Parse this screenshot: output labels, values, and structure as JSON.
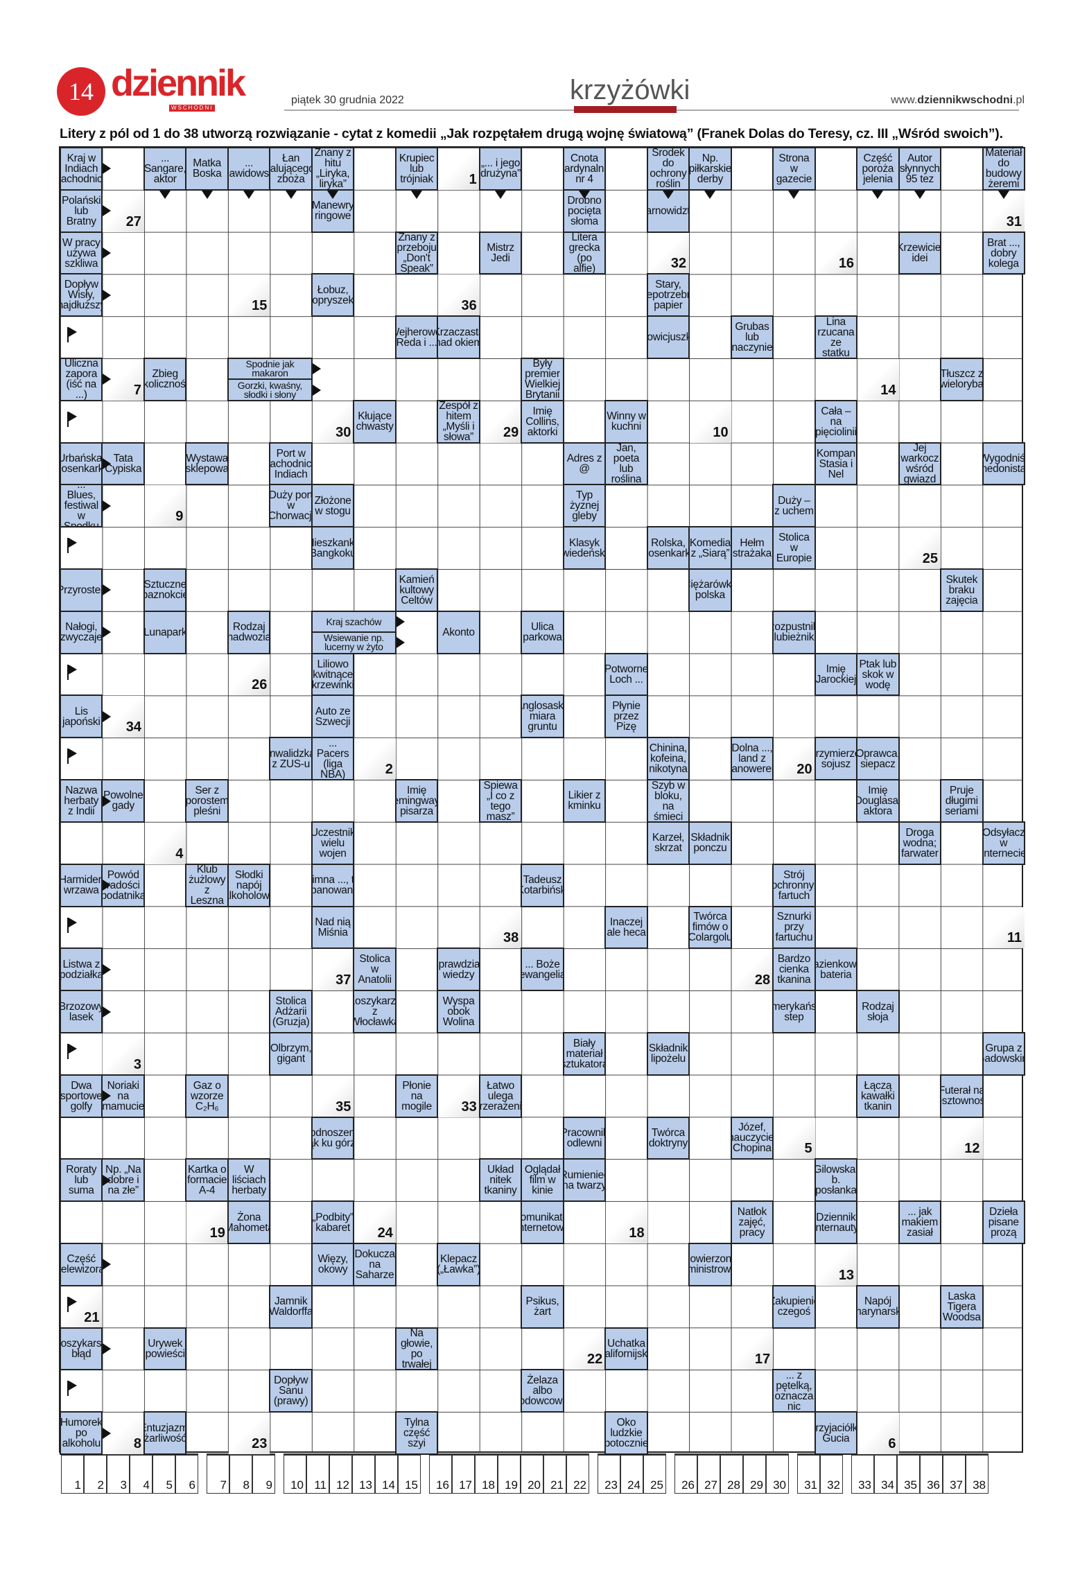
{
  "header": {
    "page_number": "14",
    "logo": "dziennik",
    "logo_sub": "WSCHODNI",
    "date": "piątek 30 grudnia 2022",
    "section": "krzyżówki",
    "site_prefix": "www.",
    "site_bold": "dziennikwschodni",
    "site_suffix": ".pl"
  },
  "colors": {
    "brand_red": "#d9252a",
    "clue_bg": "#b9cdea",
    "section_bar": "#a21d22"
  },
  "intro": "Litery z pól od 1 do 38 utworzą rozwiązanie - cytat z komedii „Jak rozpętałem drugą wojnę światową” (Franek Dolas do Teresy, cz. III „Wśród swoich”).",
  "grid": {
    "columns": 23,
    "rows": 31,
    "clues": [
      {
        "r": 0,
        "c": 0,
        "t": "Kraj w Indiach Zachodnich"
      },
      {
        "r": 0,
        "c": 2,
        "t": "... Sangare, aktor"
      },
      {
        "r": 0,
        "c": 3,
        "t": "Matka Boska"
      },
      {
        "r": 0,
        "c": 4,
        "t": "... Dawidowski"
      },
      {
        "r": 0,
        "c": 5,
        "t": "Łan falującego zboża"
      },
      {
        "r": 0,
        "c": 6,
        "t": "Znany z hitu „Liryka, liryka”"
      },
      {
        "r": 0,
        "c": 8,
        "t": "Krupiec lub trójniak"
      },
      {
        "r": 0,
        "c": 10,
        "t": "„... i jego drużyna”"
      },
      {
        "r": 0,
        "c": 12,
        "t": "Cnota kardynalna nr 4"
      },
      {
        "r": 0,
        "c": 14,
        "t": "Środek do ochrony roślin"
      },
      {
        "r": 0,
        "c": 15,
        "t": "Np. piłkarskie derby"
      },
      {
        "r": 0,
        "c": 17,
        "t": "Strona w gazecie"
      },
      {
        "r": 0,
        "c": 19,
        "t": "Część poroża jelenia"
      },
      {
        "r": 0,
        "c": 20,
        "t": "Autor słynnych 95 tez"
      },
      {
        "r": 0,
        "c": 22,
        "t": "Materiał do budowy żeremi"
      },
      {
        "r": 1,
        "c": 0,
        "t": "Polański lub Bratny"
      },
      {
        "r": 1,
        "c": 6,
        "t": "Manewry ringowe"
      },
      {
        "r": 1,
        "c": 12,
        "t": "Drobno pocięta słoma"
      },
      {
        "r": 1,
        "c": 14,
        "t": "Czarnowidztwo"
      },
      {
        "r": 2,
        "c": 0,
        "t": "W pracy używa szkliwa"
      },
      {
        "r": 2,
        "c": 8,
        "t": "Znany z przeboju „Don't Speak”"
      },
      {
        "r": 2,
        "c": 10,
        "t": "Mistrz Jedi"
      },
      {
        "r": 2,
        "c": 12,
        "t": "Litera grecka (po alfie)"
      },
      {
        "r": 2,
        "c": 20,
        "t": "Krzewiciel idei"
      },
      {
        "r": 2,
        "c": 22,
        "t": "Brat ..., dobry kolega"
      },
      {
        "r": 3,
        "c": 0,
        "t": "Dopływ Wisły, najdłuższy"
      },
      {
        "r": 3,
        "c": 6,
        "t": "Łobuz, opryszek"
      },
      {
        "r": 3,
        "c": 14,
        "t": "Stary, niepotrzebny papier"
      },
      {
        "r": 4,
        "c": 8,
        "t": "Wejherowo, Reda i ..."
      },
      {
        "r": 4,
        "c": 9,
        "t": "Krzaczasta nad okiem"
      },
      {
        "r": 4,
        "c": 14,
        "t": "Nowicjuszka"
      },
      {
        "r": 4,
        "c": 16,
        "t": "Grubas lub naczynie"
      },
      {
        "r": 4,
        "c": 18,
        "t": "Lina rzucana ze statku"
      },
      {
        "r": 5,
        "c": 0,
        "t": "Uliczna zapora (iść na ...)"
      },
      {
        "r": 5,
        "c": 2,
        "t": "Zbieg okoliczności"
      },
      {
        "r": 5,
        "c": 4,
        "span": 2,
        "half": "top",
        "t": "Spodnie jak makaron"
      },
      {
        "r": 5,
        "c": 4,
        "span": 2,
        "half": "bottom",
        "t": "Gorzki, kwaśny, słodki i słony"
      },
      {
        "r": 5,
        "c": 11,
        "t": "Były premier Wielkiej Brytanii"
      },
      {
        "r": 5,
        "c": 21,
        "t": "Tłuszcz z wieloryba"
      },
      {
        "r": 6,
        "c": 7,
        "t": "Kłujące chwasty"
      },
      {
        "r": 6,
        "c": 9,
        "t": "Zespół z hitem „Myśli i słowa”"
      },
      {
        "r": 6,
        "c": 11,
        "t": "Imię Collins, aktorki"
      },
      {
        "r": 6,
        "c": 13,
        "t": "Winny w kuchni"
      },
      {
        "r": 6,
        "c": 18,
        "t": "Cała – na pięciolinii"
      },
      {
        "r": 7,
        "c": 0,
        "t": "Urbańska, piosenkarka"
      },
      {
        "r": 7,
        "c": 1,
        "t": "Tata Cypiska"
      },
      {
        "r": 7,
        "c": 3,
        "t": "Wystawa sklepowa"
      },
      {
        "r": 7,
        "c": 5,
        "t": "Port w zachodnich Indiach"
      },
      {
        "r": 7,
        "c": 12,
        "t": "Adres z @"
      },
      {
        "r": 7,
        "c": 13,
        "t": "Jan, poeta lub roślina"
      },
      {
        "r": 7,
        "c": 18,
        "t": "Kompan Stasia i Nel"
      },
      {
        "r": 7,
        "c": 20,
        "t": "Jej warkocz wśród gwiazd"
      },
      {
        "r": 7,
        "c": 22,
        "t": "Wygodniś, hedonista"
      },
      {
        "r": 8,
        "c": 0,
        "t": "... Blues, festiwal w Spodku"
      },
      {
        "r": 8,
        "c": 5,
        "t": "Duży port w Chorwacji"
      },
      {
        "r": 8,
        "c": 6,
        "t": "Złożone w stogu"
      },
      {
        "r": 8,
        "c": 12,
        "t": "Typ żyznej gleby"
      },
      {
        "r": 8,
        "c": 17,
        "t": "Duży – z uchem"
      },
      {
        "r": 9,
        "c": 6,
        "t": "Mieszkanka Bangkoku"
      },
      {
        "r": 9,
        "c": 12,
        "t": "Klasyk wiedeński"
      },
      {
        "r": 9,
        "c": 14,
        "t": "Rolska, piosenkarka"
      },
      {
        "r": 9,
        "c": 15,
        "t": "Komedia z „Siarą”"
      },
      {
        "r": 9,
        "c": 16,
        "t": "Hełm strażaka"
      },
      {
        "r": 9,
        "c": 17,
        "t": "Stolica w Europie"
      },
      {
        "r": 10,
        "c": 0,
        "t": "Przyrostek"
      },
      {
        "r": 10,
        "c": 2,
        "t": "Sztuczne paznokcie"
      },
      {
        "r": 10,
        "c": 8,
        "t": "Kamień kultowy Celtów"
      },
      {
        "r": 10,
        "c": 15,
        "t": "Ciężarówka polska"
      },
      {
        "r": 10,
        "c": 21,
        "t": "Skutek braku zajęcia"
      },
      {
        "r": 11,
        "c": 0,
        "t": "Nałogi, zwyczaje"
      },
      {
        "r": 11,
        "c": 2,
        "t": "Lunapark"
      },
      {
        "r": 11,
        "c": 4,
        "t": "Rodzaj nadwozia"
      },
      {
        "r": 11,
        "c": 6,
        "span": 2,
        "half": "top",
        "t": "Kraj szachów"
      },
      {
        "r": 11,
        "c": 6,
        "span": 2,
        "half": "bottom",
        "t": "Wsiewanie np. lucerny w żyto"
      },
      {
        "r": 11,
        "c": 9,
        "t": "Akonto"
      },
      {
        "r": 11,
        "c": 11,
        "t": "Ulica parkowa"
      },
      {
        "r": 11,
        "c": 17,
        "t": "Rozpustnik, lubieżnik"
      },
      {
        "r": 12,
        "c": 6,
        "t": "Liliowo kwitnące krzewinki"
      },
      {
        "r": 12,
        "c": 13,
        "t": "„Potworne” Loch ..."
      },
      {
        "r": 12,
        "c": 18,
        "t": "Imię Jarockiej"
      },
      {
        "r": 12,
        "c": 19,
        "t": "Ptak lub skok w wodę"
      },
      {
        "r": 13,
        "c": 0,
        "t": "Lis japoński"
      },
      {
        "r": 13,
        "c": 6,
        "t": "Auto ze Szwecji"
      },
      {
        "r": 13,
        "c": 11,
        "t": "Anglosaska miara gruntu"
      },
      {
        "r": 13,
        "c": 13,
        "t": "Płynie przez Pizę"
      },
      {
        "r": 14,
        "c": 5,
        "t": "Inwalidzka z ZUS-u"
      },
      {
        "r": 14,
        "c": 6,
        "t": "... Pacers (liga NBA)"
      },
      {
        "r": 14,
        "c": 14,
        "t": "Chinina, kofeina, nikotyna"
      },
      {
        "r": 14,
        "c": 16,
        "t": "Dolna ..., land z Hanowerem"
      },
      {
        "r": 14,
        "c": 18,
        "t": "Przymierze, sojusz"
      },
      {
        "r": 14,
        "c": 19,
        "t": "Oprawca, siepacz"
      },
      {
        "r": 15,
        "c": 0,
        "t": "Nazwa herbaty z Indii"
      },
      {
        "r": 15,
        "c": 1,
        "t": "Powolne gady"
      },
      {
        "r": 15,
        "c": 3,
        "t": "Ser z porostem pleśni"
      },
      {
        "r": 15,
        "c": 8,
        "t": "Imię Hemingwaya, pisarza"
      },
      {
        "r": 15,
        "c": 10,
        "t": "Śpiewa „I co z tego masz”"
      },
      {
        "r": 15,
        "c": 12,
        "t": "Likier z kminku"
      },
      {
        "r": 15,
        "c": 14,
        "t": "Szyb w bloku, na śmieci"
      },
      {
        "r": 15,
        "c": 19,
        "t": "Imię Douglasa, aktora"
      },
      {
        "r": 15,
        "c": 21,
        "t": "Pruje długimi seriami"
      },
      {
        "r": 16,
        "c": 6,
        "t": "Uczestnik wielu wojen"
      },
      {
        "r": 16,
        "c": 14,
        "t": "Karzeł, skrzat"
      },
      {
        "r": 16,
        "c": 15,
        "t": "Składnik ponczu"
      },
      {
        "r": 16,
        "c": 20,
        "t": "Droga wodna; farwater"
      },
      {
        "r": 16,
        "c": 22,
        "t": "Odsyłacz w Internecie"
      },
      {
        "r": 17,
        "c": 0,
        "t": "Harmider, wrzawa"
      },
      {
        "r": 17,
        "c": 1,
        "t": "Powód radości podatnika"
      },
      {
        "r": 17,
        "c": 3,
        "t": "Klub żużlowy z Leszna"
      },
      {
        "r": 17,
        "c": 4,
        "t": "Słodki napój alkoholowy"
      },
      {
        "r": 17,
        "c": 6,
        "t": "Zimna ..., to opanowanie"
      },
      {
        "r": 17,
        "c": 11,
        "t": "Tadeusz Kotarbiński"
      },
      {
        "r": 17,
        "c": 17,
        "t": "Strój ochronny; fartuch"
      },
      {
        "r": 18,
        "c": 6,
        "t": "Nad nią Miśnia"
      },
      {
        "r": 18,
        "c": 13,
        "t": "Inaczej ale heca"
      },
      {
        "r": 18,
        "c": 15,
        "t": "Twórca fimów o Colargolu"
      },
      {
        "r": 18,
        "c": 17,
        "t": "Sznurki przy fartuchu"
      },
      {
        "r": 19,
        "c": 0,
        "t": "Listwa z podziałką"
      },
      {
        "r": 19,
        "c": 7,
        "t": "Stolica w Anatolii"
      },
      {
        "r": 19,
        "c": 9,
        "t": "Sprawdzian wiedzy"
      },
      {
        "r": 19,
        "c": 11,
        "t": "... Boże (ewangelia)"
      },
      {
        "r": 19,
        "c": 17,
        "t": "Bardzo cienka tkanina"
      },
      {
        "r": 19,
        "c": 18,
        "t": "Łazienkowy; bateria"
      },
      {
        "r": 20,
        "c": 0,
        "t": "Brzozowy lasek"
      },
      {
        "r": 20,
        "c": 5,
        "t": "Stolica Adżarii (Gruzja)"
      },
      {
        "r": 20,
        "c": 7,
        "t": "Koszykarze z Włocławka"
      },
      {
        "r": 20,
        "c": 9,
        "t": "Wyspa obok Wolina"
      },
      {
        "r": 20,
        "c": 17,
        "t": "Amerykański step"
      },
      {
        "r": 20,
        "c": 19,
        "t": "Rodzaj słoja"
      },
      {
        "r": 21,
        "c": 5,
        "t": "Olbrzym, gigant"
      },
      {
        "r": 21,
        "c": 12,
        "t": "Biały materiał sztukatora"
      },
      {
        "r": 21,
        "c": 14,
        "t": "Składnik lipożelu"
      },
      {
        "r": 21,
        "c": 22,
        "t": "Grupa z Gadowskim"
      },
      {
        "r": 22,
        "c": 0,
        "t": "Dwa sportowe golfy"
      },
      {
        "r": 22,
        "c": 1,
        "t": "Noriaki na mamucie"
      },
      {
        "r": 22,
        "c": 3,
        "t": "Gaz o wzorze C₂H₆"
      },
      {
        "r": 22,
        "c": 8,
        "t": "Płonie na mogile"
      },
      {
        "r": 22,
        "c": 10,
        "t": "Łatwo ulega przerażeniu"
      },
      {
        "r": 22,
        "c": 19,
        "t": "Łączą kawałki tkanin"
      },
      {
        "r": 22,
        "c": 21,
        "t": "Futerał na kosztowności"
      },
      {
        "r": 23,
        "c": 6,
        "t": "Podnoszenie rąk ku górze"
      },
      {
        "r": 23,
        "c": 12,
        "t": "Pracownik odlewni"
      },
      {
        "r": 23,
        "c": 14,
        "t": "Twórca doktryny"
      },
      {
        "r": 23,
        "c": 16,
        "t": "Józef, nauczyciel Chopina"
      },
      {
        "r": 24,
        "c": 0,
        "t": "Roraty lub suma"
      },
      {
        "r": 24,
        "c": 1,
        "t": "Np. „Na dobre i na złe”"
      },
      {
        "r": 24,
        "c": 3,
        "t": "Kartka o formacie A-4"
      },
      {
        "r": 24,
        "c": 4,
        "t": "W liściach herbaty"
      },
      {
        "r": 24,
        "c": 10,
        "t": "Układ nitek tkaniny"
      },
      {
        "r": 24,
        "c": 11,
        "t": "Oglądał film w kinie"
      },
      {
        "r": 24,
        "c": 12,
        "t": "Rumieniec na twarzy"
      },
      {
        "r": 24,
        "c": 18,
        "t": "Gilowska, b. posłanka"
      },
      {
        "r": 25,
        "c": 4,
        "t": "Żona Mahometa"
      },
      {
        "r": 25,
        "c": 6,
        "t": "„Podbity” kabaret"
      },
      {
        "r": 25,
        "c": 11,
        "t": "Komunikator internetowy"
      },
      {
        "r": 25,
        "c": 16,
        "t": "Natłok zajęć, pracy"
      },
      {
        "r": 25,
        "c": 18,
        "t": "Dziennik internauty"
      },
      {
        "r": 25,
        "c": 20,
        "t": "... jak makiem zasiał"
      },
      {
        "r": 25,
        "c": 22,
        "t": "Dzieła pisane prozą"
      },
      {
        "r": 26,
        "c": 0,
        "t": "Część telewizora"
      },
      {
        "r": 26,
        "c": 6,
        "t": "Więzy, okowy"
      },
      {
        "r": 26,
        "c": 7,
        "t": "Dokucza na Saharze"
      },
      {
        "r": 26,
        "c": 9,
        "t": "Klepacz („Ławka”)"
      },
      {
        "r": 26,
        "c": 15,
        "t": "Powierzona ministrowi"
      },
      {
        "r": 27,
        "c": 5,
        "t": "Jamnik Waldorffa"
      },
      {
        "r": 27,
        "c": 11,
        "t": "Psikus, żart"
      },
      {
        "r": 27,
        "c": 17,
        "t": "Zakupienie czegoś"
      },
      {
        "r": 27,
        "c": 19,
        "t": "Napój marynarski"
      },
      {
        "r": 27,
        "c": 21,
        "t": "Laska Tigera Woodsa"
      },
      {
        "r": 28,
        "c": 0,
        "t": "Koszykarski błąd"
      },
      {
        "r": 28,
        "c": 2,
        "t": "Urywek powieści"
      },
      {
        "r": 28,
        "c": 8,
        "t": "Na głowie, po trwałej"
      },
      {
        "r": 28,
        "c": 13,
        "t": "Uchatka kalifornijska"
      },
      {
        "r": 29,
        "c": 5,
        "t": "Dopływ Sanu (prawy)"
      },
      {
        "r": 29,
        "c": 11,
        "t": "Żelaza albo lodowcowa"
      },
      {
        "r": 29,
        "c": 17,
        "t": "... z pętelką, oznacza nic"
      },
      {
        "r": 30,
        "c": 0,
        "t": "Humorek po alkoholu"
      },
      {
        "r": 30,
        "c": 2,
        "t": "Entuzjazm, żarliwość"
      },
      {
        "r": 30,
        "c": 8,
        "t": "Tylna część szyi"
      },
      {
        "r": 30,
        "c": 13,
        "t": "Oko ludzkie (potocznie)"
      },
      {
        "r": 30,
        "c": 18,
        "t": "Przyjaciółka Gucia"
      }
    ],
    "numbered_cells": [
      {
        "n": "1",
        "r": 0,
        "c": 9
      },
      {
        "n": "2",
        "r": 14,
        "c": 7
      },
      {
        "n": "3",
        "r": 21,
        "c": 1
      },
      {
        "n": "4",
        "r": 16,
        "c": 2
      },
      {
        "n": "5",
        "r": 23,
        "c": 17
      },
      {
        "n": "6",
        "r": 30,
        "c": 19
      },
      {
        "n": "7",
        "r": 5,
        "c": 1
      },
      {
        "n": "8",
        "r": 30,
        "c": 1
      },
      {
        "n": "9",
        "r": 8,
        "c": 2
      },
      {
        "n": "10",
        "r": 6,
        "c": 15
      },
      {
        "n": "11",
        "r": 18,
        "c": 22
      },
      {
        "n": "12",
        "r": 23,
        "c": 21
      },
      {
        "n": "13",
        "r": 26,
        "c": 18
      },
      {
        "n": "14",
        "r": 5,
        "c": 19
      },
      {
        "n": "15",
        "r": 3,
        "c": 4
      },
      {
        "n": "16",
        "r": 2,
        "c": 18
      },
      {
        "n": "17",
        "r": 28,
        "c": 16
      },
      {
        "n": "18",
        "r": 25,
        "c": 13
      },
      {
        "n": "19",
        "r": 25,
        "c": 3
      },
      {
        "n": "20",
        "r": 14,
        "c": 17
      },
      {
        "n": "21",
        "r": 27,
        "c": 0
      },
      {
        "n": "22",
        "r": 28,
        "c": 12
      },
      {
        "n": "23",
        "r": 30,
        "c": 4
      },
      {
        "n": "24",
        "r": 25,
        "c": 7
      },
      {
        "n": "25",
        "r": 9,
        "c": 20
      },
      {
        "n": "26",
        "r": 12,
        "c": 4
      },
      {
        "n": "27",
        "r": 1,
        "c": 1
      },
      {
        "n": "28",
        "r": 19,
        "c": 16
      },
      {
        "n": "29",
        "r": 6,
        "c": 10
      },
      {
        "n": "30",
        "r": 6,
        "c": 6
      },
      {
        "n": "31",
        "r": 1,
        "c": 22
      },
      {
        "n": "32",
        "r": 2,
        "c": 14
      },
      {
        "n": "33",
        "r": 22,
        "c": 9
      },
      {
        "n": "34",
        "r": 13,
        "c": 1
      },
      {
        "n": "35",
        "r": 22,
        "c": 6
      },
      {
        "n": "36",
        "r": 3,
        "c": 9
      },
      {
        "n": "37",
        "r": 19,
        "c": 6
      },
      {
        "n": "38",
        "r": 18,
        "c": 10
      }
    ],
    "flag_rows": [
      4,
      6,
      9,
      12,
      14,
      18,
      21,
      27,
      29
    ]
  },
  "solution": {
    "groups": [
      [
        1,
        2,
        3,
        4,
        5,
        6
      ],
      [
        7,
        8,
        9
      ],
      [
        10,
        11,
        12,
        13,
        14,
        15
      ],
      [
        16,
        17,
        18,
        19,
        20,
        21,
        22
      ],
      [
        23,
        24,
        25
      ],
      [
        26,
        27,
        28,
        29,
        30
      ],
      [
        31,
        32
      ],
      [
        33,
        34,
        35,
        36,
        37,
        38
      ]
    ]
  }
}
